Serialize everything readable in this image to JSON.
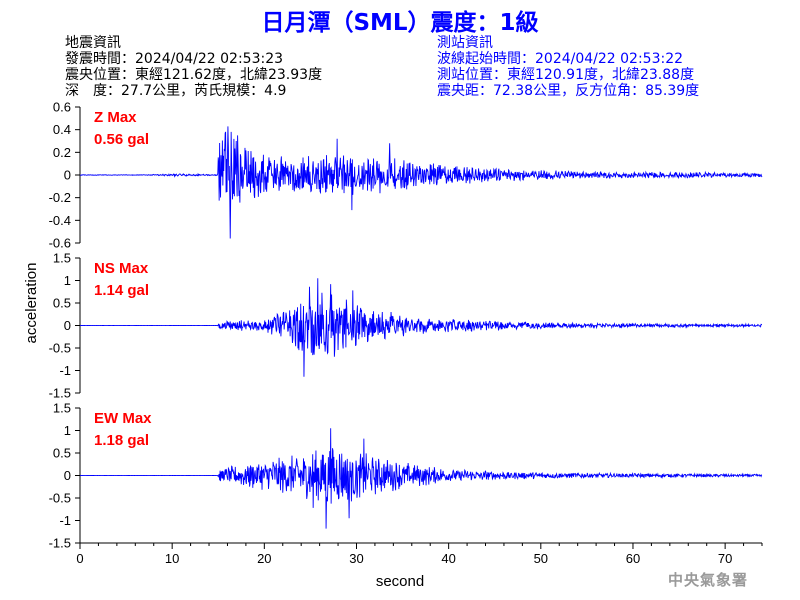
{
  "title": "日月潭（SML）震度：1級",
  "earthquake_info": {
    "heading": "地震資訊",
    "origin_time": "發震時間：2024/04/22 02:53:23",
    "epicenter": "震央位置：東經121.62度，北緯23.93度",
    "depth_magnitude": "深　度：27.7公里，芮氏規模：4.9"
  },
  "station_info": {
    "heading": "測站資訊",
    "wave_start_time": "波線起始時間：2024/04/22 02:53:22",
    "station_position": "測站位置：東經120.91度，北緯23.88度",
    "distance_azimuth": "震央距：72.38公里，反方位角：85.39度"
  },
  "credit": "中央氣象署",
  "colors": {
    "trace": "#0000ff",
    "max_label": "#ff0000",
    "title": "#0000ff",
    "credit": "#9a9a9a"
  },
  "chart_data": {
    "type": "line",
    "xlabel": "second",
    "ylabel": "acceleration",
    "xlim": [
      0,
      74
    ],
    "xticks": [
      "0",
      "10",
      "20",
      "30",
      "40",
      "50",
      "60",
      "70"
    ],
    "panels": [
      {
        "name": "Z",
        "max_label": "Z Max",
        "max_value": "0.56 gal",
        "ylim": [
          -0.6,
          0.6
        ],
        "yticks": [
          "0.6",
          "0.4",
          "0.2",
          "0",
          "-0.2",
          "-0.4",
          "-0.6"
        ],
        "ytick_values": [
          0.6,
          0.4,
          0.2,
          0,
          -0.2,
          -0.4,
          -0.6
        ],
        "envelope_t": [
          0,
          7,
          10,
          14.9,
          15.1,
          16,
          18,
          22,
          28,
          32,
          36,
          42,
          48,
          55,
          65,
          74
        ],
        "envelope_a": [
          0.003,
          0.003,
          0.012,
          0.005,
          0.38,
          0.45,
          0.28,
          0.18,
          0.2,
          0.17,
          0.13,
          0.08,
          0.05,
          0.03,
          0.025,
          0.02
        ],
        "peaks": [
          [
            15.8,
            0.38
          ],
          [
            16.3,
            -0.56
          ],
          [
            17.1,
            0.35
          ],
          [
            27.9,
            0.32
          ],
          [
            29.5,
            -0.31
          ],
          [
            33.6,
            0.28
          ]
        ]
      },
      {
        "name": "NS",
        "max_label": "NS Max",
        "max_value": "1.14 gal",
        "ylim": [
          -1.5,
          1.5
        ],
        "yticks": [
          "1.5",
          "1",
          "0.5",
          "0",
          "-0.5",
          "-1",
          "-1.5"
        ],
        "ytick_values": [
          1.5,
          1,
          0.5,
          0,
          -0.5,
          -1,
          -1.5
        ],
        "envelope_t": [
          0,
          14.9,
          15.1,
          20,
          22.5,
          25,
          28,
          31,
          34,
          38,
          45,
          55,
          65,
          74
        ],
        "envelope_a": [
          0.002,
          0.002,
          0.12,
          0.15,
          0.35,
          0.85,
          0.75,
          0.45,
          0.3,
          0.18,
          0.1,
          0.05,
          0.04,
          0.03
        ],
        "peaks": [
          [
            24.3,
            -1.14
          ],
          [
            25.8,
            1.05
          ],
          [
            27.2,
            0.92
          ],
          [
            24.9,
            0.86
          ],
          [
            29.6,
            0.78
          ]
        ]
      },
      {
        "name": "EW",
        "max_label": "EW Max",
        "max_value": "1.18 gal",
        "ylim": [
          -1.5,
          1.5
        ],
        "yticks": [
          "1.5",
          "1",
          "0.5",
          "0",
          "-0.5",
          "-1",
          "-1.5"
        ],
        "ytick_values": [
          1.5,
          1,
          0.5,
          0,
          -0.5,
          -1,
          -1.5
        ],
        "envelope_t": [
          0,
          14.9,
          15.1,
          18,
          22,
          25,
          27,
          30,
          34,
          40,
          48,
          58,
          74
        ],
        "envelope_a": [
          0.002,
          0.002,
          0.15,
          0.28,
          0.45,
          0.55,
          0.8,
          0.55,
          0.35,
          0.15,
          0.08,
          0.05,
          0.03
        ],
        "peaks": [
          [
            26.7,
            -1.18
          ],
          [
            27.2,
            1.05
          ],
          [
            29.2,
            -0.95
          ],
          [
            30.8,
            0.82
          ],
          [
            25.3,
            -0.72
          ]
        ]
      }
    ]
  }
}
